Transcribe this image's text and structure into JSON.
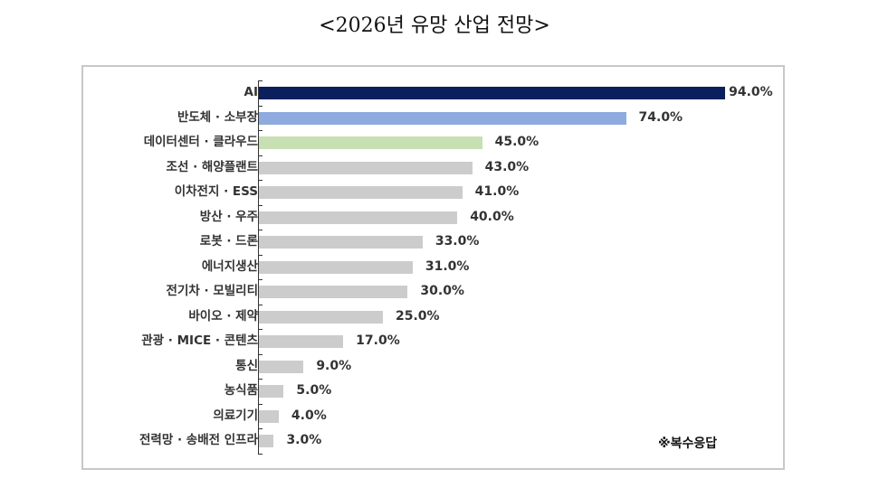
{
  "title": "<2026년 유망 산업 전망>",
  "note": "※복수응답",
  "colors": {
    "highlight_1": "#0b1f5c",
    "highlight_2": "#8eaadf",
    "highlight_3": "#c6e0b4",
    "default": "#cccccc",
    "axis": "#333333",
    "frame": "#c8c8c8"
  },
  "chart_data": {
    "type": "bar",
    "orientation": "horizontal",
    "title": "<2026년 유망 산업 전망>",
    "xlabel": "",
    "ylabel": "",
    "xlim": [
      0,
      100
    ],
    "grid": false,
    "legend": null,
    "annotation": "※복수응답",
    "categories": [
      "AI",
      "반도체 · 소부장",
      "데이터센터 · 클라우드",
      "조선 · 해양플랜트",
      "이차전지 · ESS",
      "방산 · 우주",
      "로봇 · 드론",
      "에너지생산",
      "전기차 · 모빌리티",
      "바이오 · 제약",
      "관광 · MICE · 콘텐츠",
      "통신",
      "농식품",
      "의료기기",
      "전력망 · 송배전 인프라"
    ],
    "values": [
      94.0,
      74.0,
      45.0,
      43.0,
      41.0,
      40.0,
      33.0,
      31.0,
      30.0,
      25.0,
      17.0,
      9.0,
      5.0,
      4.0,
      3.0
    ],
    "value_labels": [
      "94.0%",
      "74.0%",
      "45.0%",
      "43.0%",
      "41.0%",
      "40.0%",
      "33.0%",
      "31.0%",
      "30.0%",
      "25.0%",
      "17.0%",
      "9.0%",
      "5.0%",
      "4.0%",
      "3.0%"
    ],
    "bar_colors": [
      "#0b1f5c",
      "#8eaadf",
      "#c6e0b4",
      "#cccccc",
      "#cccccc",
      "#cccccc",
      "#cccccc",
      "#cccccc",
      "#cccccc",
      "#cccccc",
      "#cccccc",
      "#cccccc",
      "#cccccc",
      "#cccccc",
      "#cccccc"
    ],
    "unit": "%"
  }
}
